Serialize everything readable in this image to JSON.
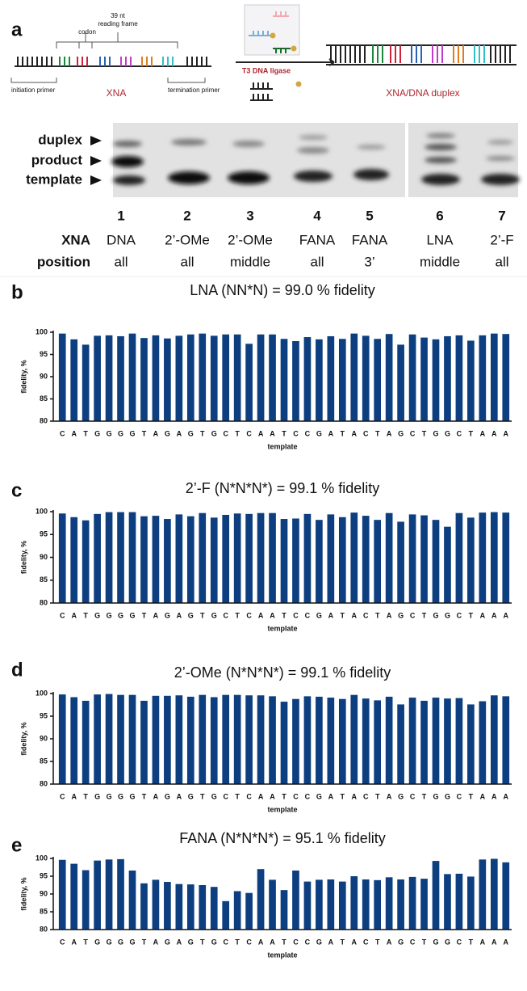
{
  "panel_a": {
    "panel": "a",
    "frame_length": "39 nt",
    "frame_label": "reading frame",
    "codon": "codon",
    "initiation_primer": "initiation primer",
    "termination_primer": "termination primer",
    "left_label": "XNA",
    "enzyme": "T3 DNA ligase",
    "right_label": "XNA/DNA duplex",
    "gel_labels": [
      "duplex",
      "product",
      "template"
    ],
    "row_labels": [
      "XNA",
      "position"
    ],
    "lanes": [
      {
        "number": "1",
        "xna": "DNA",
        "position": "all"
      },
      {
        "number": "2",
        "xna": "2’-OMe",
        "position": "all"
      },
      {
        "number": "3",
        "xna": "2’-OMe",
        "position": "middle"
      },
      {
        "number": "4",
        "xna": "FANA",
        "position": "all"
      },
      {
        "number": "5",
        "xna": "FANA",
        "position": "3’"
      },
      {
        "number": "6",
        "xna": "LNA",
        "position": "middle"
      },
      {
        "number": "7",
        "xna": "2’-F",
        "position": "all"
      }
    ]
  },
  "chart_data": [
    {
      "type": "bar",
      "panel": "b",
      "title": "LNA (NN*N) = 99.0 % fidelity",
      "x_label": "template",
      "y_label": "fidelity, %",
      "color": "#0d3f80",
      "categories": [
        "C",
        "A",
        "T",
        "G",
        "G",
        "G",
        "G",
        "T",
        "A",
        "G",
        "A",
        "G",
        "T",
        "G",
        "C",
        "T",
        "C",
        "A",
        "A",
        "T",
        "C",
        "C",
        "G",
        "A",
        "T",
        "A",
        "C",
        "T",
        "A",
        "G",
        "C",
        "T",
        "G",
        "G",
        "C",
        "T",
        "A",
        "A",
        "A"
      ],
      "values": [
        99.7,
        98.4,
        97.2,
        99.2,
        99.3,
        99.1,
        99.7,
        98.7,
        99.3,
        98.6,
        99.2,
        99.5,
        99.7,
        99.2,
        99.5,
        99.5,
        97.4,
        99.5,
        99.5,
        98.5,
        98.0,
        98.9,
        98.4,
        99.1,
        98.5,
        99.7,
        99.2,
        98.5,
        99.6,
        97.2,
        99.5,
        98.8,
        98.4,
        99.1,
        99.3,
        98.1,
        99.3,
        99.7,
        99.6
      ],
      "ylim": [
        80,
        100
      ],
      "yticks": [
        80,
        85,
        90,
        95,
        100
      ]
    },
    {
      "type": "bar",
      "panel": "c",
      "title": "2’-F (N*N*N*) = 99.1 % fidelity",
      "x_label": "template",
      "y_label": "fidelity, %",
      "color": "#0d3f80",
      "categories": [
        "C",
        "A",
        "T",
        "G",
        "G",
        "G",
        "G",
        "T",
        "A",
        "G",
        "A",
        "G",
        "T",
        "G",
        "C",
        "T",
        "C",
        "A",
        "A",
        "T",
        "C",
        "C",
        "G",
        "A",
        "T",
        "A",
        "C",
        "T",
        "A",
        "G",
        "C",
        "T",
        "G",
        "G",
        "C",
        "T",
        "A",
        "A",
        "A"
      ],
      "values": [
        99.6,
        98.8,
        98.1,
        99.5,
        99.9,
        99.9,
        99.9,
        99.0,
        99.1,
        98.4,
        99.4,
        99.0,
        99.7,
        98.7,
        99.3,
        99.6,
        99.5,
        99.7,
        99.7,
        98.4,
        98.5,
        99.5,
        98.2,
        99.4,
        98.8,
        99.8,
        99.1,
        98.2,
        99.7,
        97.8,
        99.4,
        99.2,
        98.2,
        96.7,
        99.7,
        98.7,
        99.8,
        99.9,
        99.8
      ],
      "ylim": [
        80,
        100
      ],
      "yticks": [
        80,
        85,
        90,
        95,
        100
      ]
    },
    {
      "type": "bar",
      "panel": "d",
      "title": "2’-OMe (N*N*N*) = 99.1 % fidelity",
      "x_label": "template",
      "y_label": "fidelity, %",
      "color": "#0d3f80",
      "categories": [
        "C",
        "A",
        "T",
        "G",
        "G",
        "G",
        "G",
        "T",
        "A",
        "G",
        "A",
        "G",
        "T",
        "G",
        "C",
        "T",
        "C",
        "A",
        "A",
        "T",
        "C",
        "C",
        "G",
        "A",
        "T",
        "A",
        "C",
        "T",
        "A",
        "G",
        "C",
        "T",
        "G",
        "G",
        "C",
        "T",
        "A",
        "A",
        "A"
      ],
      "values": [
        99.8,
        99.2,
        98.4,
        99.8,
        99.9,
        99.7,
        99.7,
        98.4,
        99.5,
        99.5,
        99.6,
        99.3,
        99.7,
        99.2,
        99.7,
        99.7,
        99.6,
        99.6,
        99.4,
        98.2,
        98.8,
        99.4,
        99.3,
        99.1,
        98.8,
        99.7,
        98.9,
        98.5,
        99.3,
        97.6,
        99.1,
        98.4,
        99.1,
        98.9,
        99.0,
        97.6,
        98.3,
        99.6,
        99.4
      ],
      "ylim": [
        80,
        100
      ],
      "yticks": [
        80,
        85,
        90,
        95,
        100
      ]
    },
    {
      "type": "bar",
      "panel": "e",
      "title": "FANA (N*N*N*) = 95.1 % fidelity",
      "x_label": "template",
      "y_label": "fidelity, %",
      "color": "#0d3f80",
      "categories": [
        "C",
        "A",
        "T",
        "G",
        "G",
        "G",
        "G",
        "T",
        "A",
        "G",
        "A",
        "G",
        "T",
        "G",
        "C",
        "T",
        "C",
        "A",
        "A",
        "T",
        "C",
        "C",
        "G",
        "A",
        "T",
        "A",
        "C",
        "T",
        "A",
        "G",
        "C",
        "T",
        "G",
        "G",
        "C",
        "T",
        "A",
        "A",
        "A"
      ],
      "values": [
        99.6,
        98.5,
        96.7,
        99.4,
        99.7,
        99.8,
        96.6,
        93.0,
        94.0,
        93.4,
        92.8,
        92.7,
        92.5,
        92.0,
        88.0,
        90.8,
        90.3,
        97.0,
        94.0,
        91.1,
        96.6,
        93.5,
        94.0,
        94.1,
        93.5,
        95.0,
        94.1,
        93.9,
        94.7,
        94.1,
        94.8,
        94.3,
        99.3,
        95.6,
        95.7,
        94.9,
        99.7,
        99.9,
        98.9
      ],
      "ylim": [
        80,
        100
      ],
      "yticks": [
        80,
        85,
        90,
        95,
        100
      ]
    }
  ]
}
